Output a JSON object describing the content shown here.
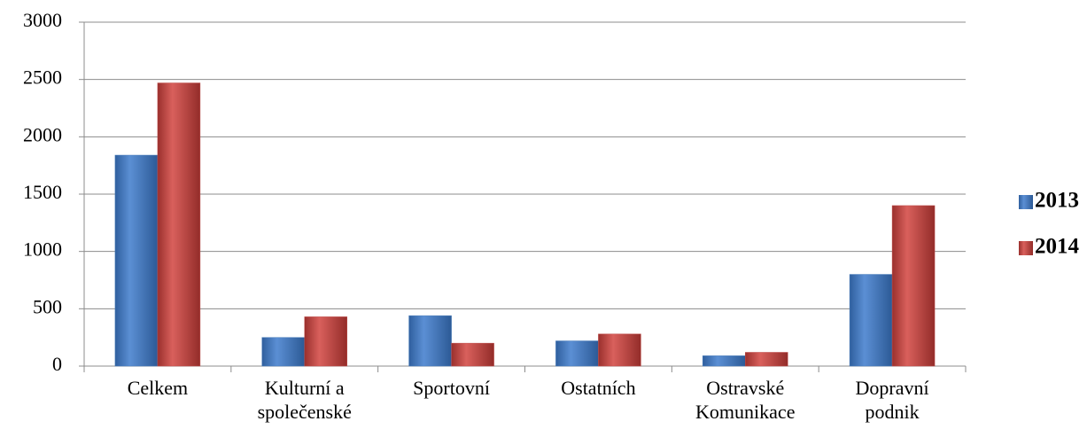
{
  "chart_data": {
    "type": "bar",
    "categories": [
      "Celkem",
      "Kulturní a\nspolečenské",
      "Sportovní",
      "Ostatních",
      "Ostravské\nKomunikace",
      "Dopravní\npodnik"
    ],
    "series": [
      {
        "name": "2013",
        "color": "#4a7ebb",
        "values": [
          1840,
          250,
          440,
          220,
          90,
          800
        ]
      },
      {
        "name": "2014",
        "color": "#c0504d",
        "values": [
          2470,
          430,
          200,
          280,
          120,
          1400
        ]
      }
    ],
    "ylim": [
      0,
      3000
    ],
    "yticks": [
      0,
      500,
      1000,
      1500,
      2000,
      2500,
      3000
    ],
    "grid": true,
    "legend": "right"
  }
}
